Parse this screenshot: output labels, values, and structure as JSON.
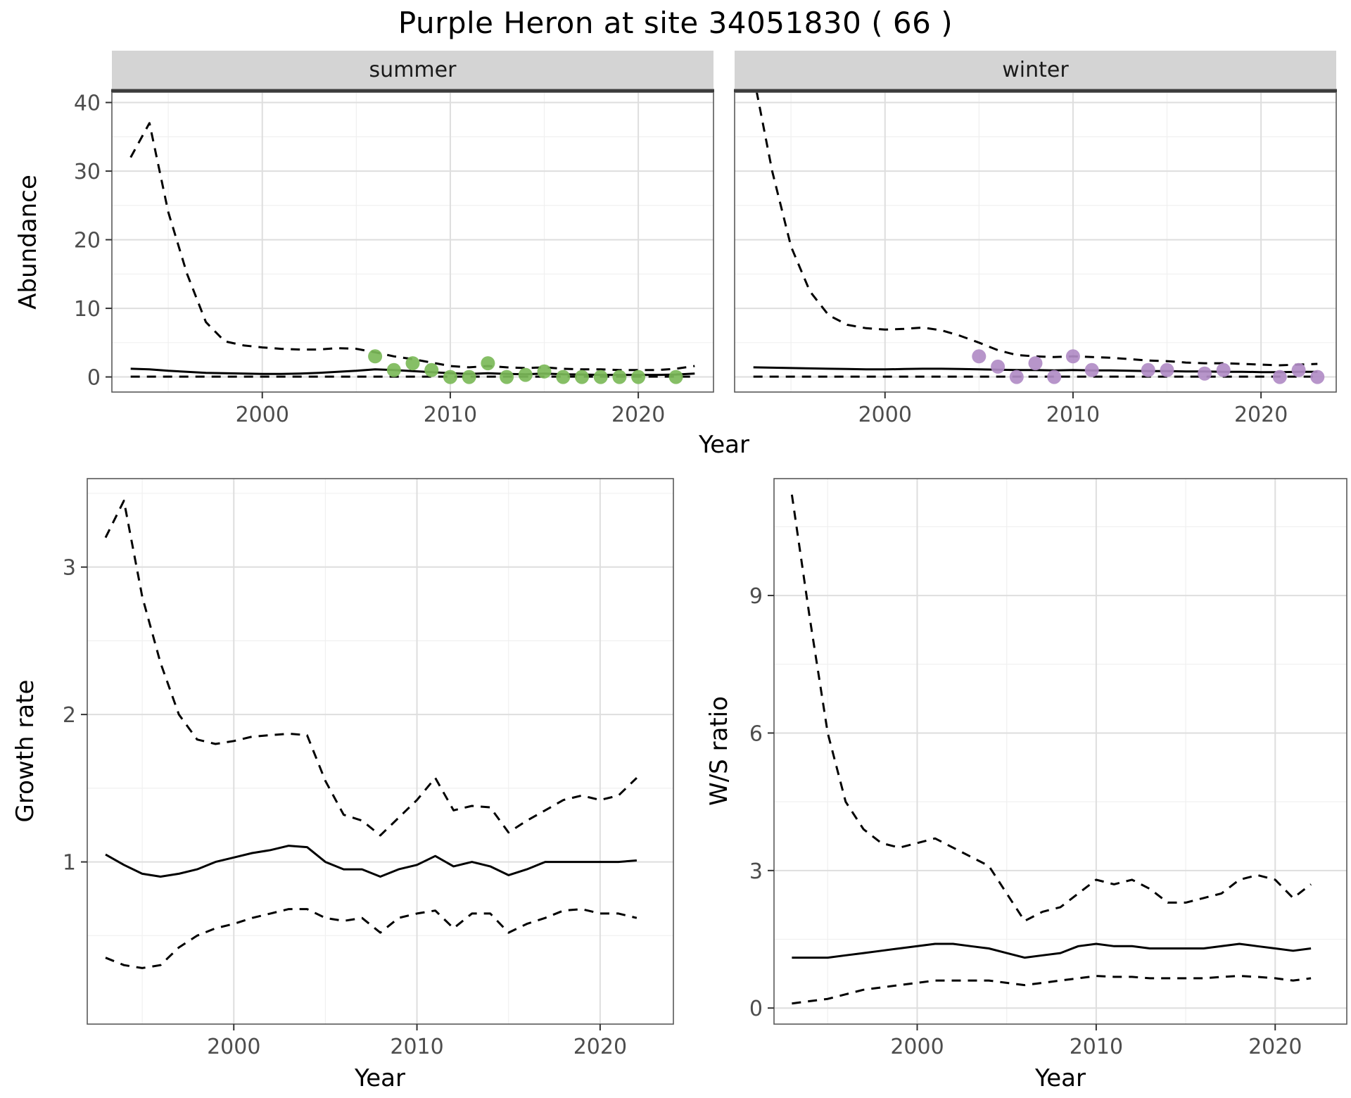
{
  "title": "Purple Heron at site 34051830 ( 66 )",
  "facets": {
    "summer": "summer",
    "winter": "winter"
  },
  "axis_labels": {
    "year": "Year",
    "abundance": "Abundance",
    "growth_rate": "Growth rate",
    "ws_ratio": "W/S ratio"
  },
  "colors": {
    "strip_bg": "#d4d4d4",
    "facet_bar": "#3c3c3c",
    "panel_border": "#595959",
    "grid_major": "#dedede",
    "grid_minor": "#f0f0f0",
    "line": "#000000",
    "tick": "#333333",
    "tick_label": "#4d4d4d",
    "summer_points": "#7cba59",
    "winter_points": "#b18cc6"
  },
  "chart_data": [
    {
      "id": "abundance_summer",
      "type": "line",
      "facet": "summer",
      "xlabel": "Year",
      "ylabel": "Abundance",
      "xlim": [
        1992,
        2024
      ],
      "ylim": [
        -2.2,
        41.5
      ],
      "xticks": [
        2000,
        2010,
        2020
      ],
      "yticks": [
        0,
        10,
        20,
        30,
        40
      ],
      "xminor": [
        1995,
        2005,
        2015
      ],
      "yminor": [
        5,
        15,
        25,
        35
      ],
      "x": [
        1993,
        1994,
        1995,
        1996,
        1997,
        1998,
        1999,
        2000,
        2001,
        2002,
        2003,
        2004,
        2005,
        2006,
        2007,
        2008,
        2009,
        2010,
        2011,
        2012,
        2013,
        2014,
        2015,
        2016,
        2017,
        2018,
        2019,
        2020,
        2021,
        2022,
        2023
      ],
      "series": [
        {
          "name": "upper-ci",
          "style": "dashed",
          "y": [
            32,
            37,
            24,
            15,
            8,
            5.2,
            4.6,
            4.3,
            4.1,
            4.0,
            4.0,
            4.2,
            4.1,
            3.6,
            3.0,
            2.6,
            2.1,
            1.6,
            1.4,
            1.6,
            1.4,
            1.3,
            1.4,
            1.2,
            1.1,
            1.1,
            1.0,
            1.0,
            1.0,
            1.2,
            1.6
          ]
        },
        {
          "name": "estimate",
          "style": "solid",
          "y": [
            1.2,
            1.1,
            0.9,
            0.75,
            0.6,
            0.55,
            0.5,
            0.45,
            0.45,
            0.5,
            0.6,
            0.75,
            0.9,
            1.1,
            1.0,
            0.85,
            0.7,
            0.55,
            0.45,
            0.55,
            0.45,
            0.4,
            0.5,
            0.4,
            0.35,
            0.3,
            0.3,
            0.3,
            0.3,
            0.35,
            0.5
          ]
        },
        {
          "name": "lower-ci",
          "style": "dashed",
          "y": [
            0.05,
            0.05,
            0.05,
            0.05,
            0.05,
            0.05,
            0.05,
            0.05,
            0.05,
            0.05,
            0.05,
            0.05,
            0.05,
            0.05,
            0.05,
            0.05,
            0.05,
            0.05,
            0.05,
            0.05,
            0.05,
            0.05,
            0.05,
            0.05,
            0.05,
            0.05,
            0.05,
            0.05,
            0.05,
            0.05,
            0.05
          ]
        }
      ],
      "points": {
        "name": "observations",
        "color": "#7cba59",
        "x": [
          2006,
          2007,
          2008,
          2009,
          2010,
          2011,
          2012,
          2013,
          2014,
          2015,
          2016,
          2017,
          2018,
          2019,
          2020,
          2022
        ],
        "y": [
          3,
          1,
          2,
          1,
          0,
          0,
          2,
          0,
          0.3,
          0.8,
          0,
          0,
          0,
          0,
          0,
          0
        ]
      }
    },
    {
      "id": "abundance_winter",
      "type": "line",
      "facet": "winter",
      "xlabel": "Year",
      "ylabel": "Abundance",
      "xlim": [
        1992,
        2024
      ],
      "ylim": [
        -2.2,
        41.5
      ],
      "xticks": [
        2000,
        2010,
        2020
      ],
      "yticks": [
        0,
        10,
        20,
        30,
        40
      ],
      "xminor": [
        1995,
        2005,
        2015
      ],
      "yminor": [
        5,
        15,
        25,
        35
      ],
      "x": [
        1993,
        1994,
        1995,
        1996,
        1997,
        1998,
        1999,
        2000,
        2001,
        2002,
        2003,
        2004,
        2005,
        2006,
        2007,
        2008,
        2009,
        2010,
        2011,
        2012,
        2013,
        2014,
        2015,
        2016,
        2017,
        2018,
        2019,
        2020,
        2021,
        2022,
        2023
      ],
      "series": [
        {
          "name": "upper-ci",
          "style": "dashed",
          "y": [
            44,
            30,
            19,
            12.5,
            9,
            7.6,
            7.1,
            6.9,
            7.0,
            7.2,
            6.8,
            6.0,
            5.0,
            3.9,
            3.2,
            3.0,
            2.9,
            3.0,
            2.9,
            2.8,
            2.6,
            2.4,
            2.3,
            2.1,
            2.0,
            2.0,
            1.9,
            1.8,
            1.7,
            1.8,
            1.9
          ]
        },
        {
          "name": "estimate",
          "style": "solid",
          "y": [
            1.4,
            1.35,
            1.3,
            1.25,
            1.2,
            1.15,
            1.1,
            1.1,
            1.15,
            1.2,
            1.2,
            1.15,
            1.1,
            1.05,
            1.0,
            1.0,
            0.95,
            1.0,
            0.95,
            0.95,
            0.9,
            0.85,
            0.85,
            0.8,
            0.8,
            0.75,
            0.75,
            0.7,
            0.7,
            0.75,
            0.75
          ]
        },
        {
          "name": "lower-ci",
          "style": "dashed",
          "y": [
            0.05,
            0.05,
            0.05,
            0.05,
            0.05,
            0.05,
            0.05,
            0.05,
            0.05,
            0.05,
            0.05,
            0.05,
            0.05,
            0.05,
            0.05,
            0.05,
            0.05,
            0.05,
            0.05,
            0.05,
            0.05,
            0.05,
            0.05,
            0.05,
            0.05,
            0.05,
            0.05,
            0.05,
            0.05,
            0.05,
            0.05
          ]
        }
      ],
      "points": {
        "name": "observations",
        "color": "#b18cc6",
        "x": [
          2005,
          2006,
          2007,
          2008,
          2009,
          2010,
          2011,
          2014,
          2015,
          2017,
          2018,
          2021,
          2022,
          2023
        ],
        "y": [
          3,
          1.5,
          0,
          2,
          0,
          3,
          1,
          1,
          1,
          0.5,
          1,
          0,
          1,
          0
        ]
      }
    },
    {
      "id": "growth_rate",
      "type": "line",
      "facet": null,
      "xlabel": "Year",
      "ylabel": "Growth rate",
      "xlim": [
        1992,
        2024
      ],
      "ylim": [
        -0.1,
        3.6
      ],
      "xticks": [
        2000,
        2010,
        2020
      ],
      "yticks": [
        1,
        2,
        3
      ],
      "xminor": [
        1995,
        2005,
        2015
      ],
      "yminor": [
        0.5,
        1.5,
        2.5,
        3.5
      ],
      "x": [
        1993,
        1994,
        1995,
        1996,
        1997,
        1998,
        1999,
        2000,
        2001,
        2002,
        2003,
        2004,
        2005,
        2006,
        2007,
        2008,
        2009,
        2010,
        2011,
        2012,
        2013,
        2014,
        2015,
        2016,
        2017,
        2018,
        2019,
        2020,
        2021,
        2022
      ],
      "series": [
        {
          "name": "upper-ci",
          "style": "dashed",
          "y": [
            3.2,
            3.45,
            2.8,
            2.35,
            2.0,
            1.83,
            1.8,
            1.82,
            1.85,
            1.86,
            1.87,
            1.86,
            1.55,
            1.32,
            1.28,
            1.18,
            1.3,
            1.42,
            1.57,
            1.35,
            1.38,
            1.37,
            1.2,
            1.28,
            1.35,
            1.42,
            1.45,
            1.42,
            1.45,
            1.57
          ]
        },
        {
          "name": "estimate",
          "style": "solid",
          "y": [
            1.05,
            0.98,
            0.92,
            0.9,
            0.92,
            0.95,
            1.0,
            1.03,
            1.06,
            1.08,
            1.11,
            1.1,
            1.0,
            0.95,
            0.95,
            0.9,
            0.95,
            0.98,
            1.04,
            0.97,
            1.0,
            0.97,
            0.91,
            0.95,
            1.0,
            1.0,
            1.0,
            1.0,
            1.0,
            1.01
          ]
        },
        {
          "name": "lower-ci",
          "style": "dashed",
          "y": [
            0.35,
            0.3,
            0.28,
            0.3,
            0.42,
            0.5,
            0.55,
            0.58,
            0.62,
            0.65,
            0.68,
            0.68,
            0.62,
            0.6,
            0.62,
            0.52,
            0.62,
            0.65,
            0.67,
            0.55,
            0.65,
            0.65,
            0.52,
            0.58,
            0.62,
            0.67,
            0.68,
            0.65,
            0.65,
            0.62
          ]
        }
      ],
      "points": null
    },
    {
      "id": "ws_ratio",
      "type": "line",
      "facet": null,
      "xlabel": "Year",
      "ylabel": "W/S ratio",
      "xlim": [
        1992,
        2024
      ],
      "ylim": [
        -0.35,
        11.55
      ],
      "xticks": [
        2000,
        2010,
        2020
      ],
      "yticks": [
        0,
        3,
        6,
        9
      ],
      "xminor": [
        1995,
        2005,
        2015
      ],
      "yminor": [
        1.5,
        4.5,
        7.5,
        10.5
      ],
      "x": [
        1993,
        1994,
        1995,
        1996,
        1997,
        1998,
        1999,
        2000,
        2001,
        2002,
        2003,
        2004,
        2005,
        2006,
        2007,
        2008,
        2009,
        2010,
        2011,
        2012,
        2013,
        2014,
        2015,
        2016,
        2017,
        2018,
        2019,
        2020,
        2021,
        2022
      ],
      "series": [
        {
          "name": "upper-ci",
          "style": "dashed",
          "y": [
            11.2,
            8.5,
            6.0,
            4.5,
            3.9,
            3.6,
            3.5,
            3.6,
            3.7,
            3.5,
            3.3,
            3.1,
            2.5,
            1.9,
            2.1,
            2.2,
            2.5,
            2.8,
            2.7,
            2.8,
            2.6,
            2.3,
            2.3,
            2.4,
            2.5,
            2.8,
            2.9,
            2.8,
            2.4,
            2.7
          ]
        },
        {
          "name": "estimate",
          "style": "solid",
          "y": [
            1.1,
            1.1,
            1.1,
            1.15,
            1.2,
            1.25,
            1.3,
            1.35,
            1.4,
            1.4,
            1.35,
            1.3,
            1.2,
            1.1,
            1.15,
            1.2,
            1.35,
            1.4,
            1.35,
            1.35,
            1.3,
            1.3,
            1.3,
            1.3,
            1.35,
            1.4,
            1.35,
            1.3,
            1.25,
            1.3
          ]
        },
        {
          "name": "lower-ci",
          "style": "dashed",
          "y": [
            0.1,
            0.15,
            0.2,
            0.3,
            0.4,
            0.45,
            0.5,
            0.55,
            0.6,
            0.6,
            0.6,
            0.6,
            0.55,
            0.5,
            0.55,
            0.6,
            0.65,
            0.7,
            0.68,
            0.68,
            0.65,
            0.65,
            0.65,
            0.65,
            0.68,
            0.7,
            0.68,
            0.65,
            0.6,
            0.65
          ]
        }
      ],
      "points": null
    }
  ]
}
